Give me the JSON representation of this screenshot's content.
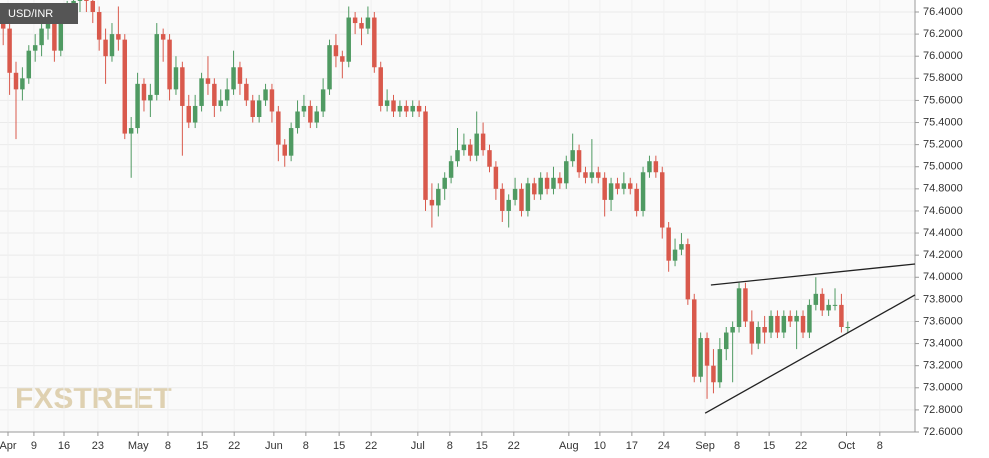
{
  "chart_data": {
    "type": "candlestick",
    "title": "USD/INR",
    "watermark": "FXSTREET",
    "up_color": "#4f9a62",
    "down_color": "#d9594c",
    "grid": true,
    "xlim": [
      -0.5,
      142.5
    ],
    "xticks": [
      {
        "value": 0.75,
        "label": "Apr"
      },
      {
        "value": 4.8,
        "label": "9"
      },
      {
        "value": 9.5,
        "label": "16"
      },
      {
        "value": 14.8,
        "label": "23"
      },
      {
        "value": 21.1,
        "label": "May"
      },
      {
        "value": 25.75,
        "label": "8"
      },
      {
        "value": 31.1,
        "label": "15"
      },
      {
        "value": 36.1,
        "label": "22"
      },
      {
        "value": 42.3,
        "label": "Jun"
      },
      {
        "value": 47.3,
        "label": "8"
      },
      {
        "value": 52.5,
        "label": "15"
      },
      {
        "value": 57.5,
        "label": "22"
      },
      {
        "value": 64.8,
        "label": "Jul"
      },
      {
        "value": 69.8,
        "label": "8"
      },
      {
        "value": 74.8,
        "label": "15"
      },
      {
        "value": 79.8,
        "label": "22"
      },
      {
        "value": 88.4,
        "label": "Aug"
      },
      {
        "value": 93.25,
        "label": "10"
      },
      {
        "value": 98.25,
        "label": "17"
      },
      {
        "value": 103.25,
        "label": "24"
      },
      {
        "value": 109.7,
        "label": "Sep"
      },
      {
        "value": 114.7,
        "label": "8"
      },
      {
        "value": 119.7,
        "label": "15"
      },
      {
        "value": 124.7,
        "label": "22"
      },
      {
        "value": 131.8,
        "label": "Oct"
      },
      {
        "value": 137,
        "label": "8"
      }
    ],
    "ylim": [
      72.6,
      76.4
    ],
    "yticks": [
      {
        "value": 72.6,
        "label": "72.6000"
      },
      {
        "value": 72.8,
        "label": "72.8000"
      },
      {
        "value": 73.0,
        "label": "73.0000"
      },
      {
        "value": 73.2,
        "label": "73.2000"
      },
      {
        "value": 73.4,
        "label": "73.4000"
      },
      {
        "value": 73.6,
        "label": "73.6000"
      },
      {
        "value": 73.8,
        "label": "73.8000"
      },
      {
        "value": 74.0,
        "label": "74.0000"
      },
      {
        "value": 74.2,
        "label": "74.2000"
      },
      {
        "value": 74.4,
        "label": "74.4000"
      },
      {
        "value": 74.6,
        "label": "74.6000"
      },
      {
        "value": 74.8,
        "label": "74.8000"
      },
      {
        "value": 75.0,
        "label": "75.0000"
      },
      {
        "value": 75.2,
        "label": "75.2000"
      },
      {
        "value": 75.4,
        "label": "75.4000"
      },
      {
        "value": 75.6,
        "label": "75.6000"
      },
      {
        "value": 75.8,
        "label": "75.8000"
      },
      {
        "value": 76.0,
        "label": "76.0000"
      },
      {
        "value": 76.2,
        "label": "76.2000"
      },
      {
        "value": 76.4,
        "label": "76.4000"
      }
    ],
    "x": [
      0,
      1,
      2,
      3,
      4,
      5,
      6,
      7,
      8,
      9,
      10,
      11,
      12,
      13,
      14,
      15,
      16,
      17,
      18,
      19,
      20,
      21,
      22,
      23,
      24,
      25,
      26,
      27,
      28,
      29,
      30,
      31,
      32,
      33,
      34,
      35,
      36,
      37,
      38,
      39,
      40,
      41,
      42,
      43,
      44,
      45,
      46,
      47,
      48,
      49,
      50,
      51,
      52,
      53,
      54,
      55,
      56,
      57,
      58,
      59,
      60,
      61,
      62,
      63,
      64,
      65,
      66,
      67,
      68,
      69,
      70,
      71,
      72,
      73,
      74,
      75,
      76,
      77,
      78,
      79,
      80,
      81,
      82,
      83,
      84,
      85,
      86,
      87,
      88,
      89,
      90,
      91,
      92,
      93,
      94,
      95,
      96,
      97,
      98,
      99,
      100,
      101,
      102,
      103,
      104,
      105,
      106,
      107,
      108,
      109,
      110,
      111,
      112,
      113,
      114,
      115,
      116,
      117,
      118,
      119,
      120,
      121,
      122,
      123,
      124,
      125,
      126,
      127,
      128,
      129,
      130,
      131,
      132
    ],
    "ohlc": [
      [
        76.35,
        76.4,
        76.1,
        76.25
      ],
      [
        76.25,
        76.3,
        75.65,
        75.85
      ],
      [
        75.85,
        75.95,
        75.25,
        75.7
      ],
      [
        75.7,
        75.9,
        75.6,
        75.8
      ],
      [
        75.8,
        76.1,
        75.75,
        76.05
      ],
      [
        76.05,
        76.2,
        75.95,
        76.1
      ],
      [
        76.1,
        76.3,
        76.0,
        76.25
      ],
      [
        76.25,
        76.4,
        76.15,
        76.3
      ],
      [
        76.3,
        76.35,
        75.95,
        76.05
      ],
      [
        76.05,
        76.4,
        76.0,
        76.35
      ],
      [
        76.35,
        76.5,
        76.3,
        76.45
      ],
      [
        76.45,
        76.55,
        76.35,
        76.5
      ],
      [
        76.5,
        76.6,
        76.4,
        76.55
      ],
      [
        76.55,
        76.6,
        76.4,
        76.5
      ],
      [
        76.5,
        76.55,
        76.3,
        76.4
      ],
      [
        76.4,
        76.45,
        76.05,
        76.15
      ],
      [
        76.15,
        76.25,
        75.75,
        76.0
      ],
      [
        76.0,
        76.3,
        75.95,
        76.2
      ],
      [
        76.2,
        76.45,
        76.05,
        76.15
      ],
      [
        76.15,
        76.2,
        75.25,
        75.3
      ],
      [
        75.3,
        75.45,
        74.9,
        75.35
      ],
      [
        75.35,
        75.85,
        75.3,
        75.75
      ],
      [
        75.75,
        75.8,
        75.5,
        75.6
      ],
      [
        75.6,
        75.75,
        75.45,
        75.65
      ],
      [
        75.65,
        76.3,
        75.6,
        76.2
      ],
      [
        76.2,
        76.25,
        75.95,
        76.15
      ],
      [
        76.15,
        76.2,
        75.6,
        75.7
      ],
      [
        75.7,
        76.0,
        75.65,
        75.9
      ],
      [
        75.9,
        75.95,
        75.1,
        75.55
      ],
      [
        75.55,
        75.65,
        75.35,
        75.4
      ],
      [
        75.4,
        75.65,
        75.35,
        75.55
      ],
      [
        75.55,
        75.85,
        75.5,
        75.8
      ],
      [
        75.8,
        76.0,
        75.65,
        75.75
      ],
      [
        75.75,
        75.8,
        75.45,
        75.55
      ],
      [
        75.55,
        75.7,
        75.5,
        75.6
      ],
      [
        75.6,
        75.8,
        75.55,
        75.7
      ],
      [
        75.7,
        76.05,
        75.65,
        75.9
      ],
      [
        75.9,
        75.95,
        75.65,
        75.75
      ],
      [
        75.75,
        75.8,
        75.55,
        75.6
      ],
      [
        75.6,
        75.65,
        75.4,
        75.45
      ],
      [
        75.45,
        75.65,
        75.4,
        75.6
      ],
      [
        75.6,
        75.75,
        75.55,
        75.7
      ],
      [
        75.7,
        75.75,
        75.4,
        75.5
      ],
      [
        75.5,
        75.55,
        75.05,
        75.2
      ],
      [
        75.2,
        75.25,
        75.0,
        75.1
      ],
      [
        75.1,
        75.4,
        75.05,
        75.35
      ],
      [
        75.35,
        75.6,
        75.3,
        75.5
      ],
      [
        75.5,
        75.65,
        75.45,
        75.55
      ],
      [
        75.55,
        75.6,
        75.35,
        75.4
      ],
      [
        75.4,
        75.55,
        75.35,
        75.5
      ],
      [
        75.5,
        75.8,
        75.45,
        75.7
      ],
      [
        75.7,
        76.15,
        75.65,
        76.1
      ],
      [
        76.1,
        76.2,
        75.9,
        76.0
      ],
      [
        76.0,
        76.05,
        75.8,
        75.95
      ],
      [
        75.95,
        76.45,
        75.9,
        76.35
      ],
      [
        76.35,
        76.4,
        76.2,
        76.3
      ],
      [
        76.3,
        76.35,
        76.1,
        76.25
      ],
      [
        76.25,
        76.45,
        76.2,
        76.35
      ],
      [
        76.35,
        76.4,
        75.85,
        75.9
      ],
      [
        75.9,
        75.95,
        75.5,
        75.55
      ],
      [
        75.55,
        75.7,
        75.5,
        75.6
      ],
      [
        75.6,
        75.65,
        75.45,
        75.5
      ],
      [
        75.5,
        75.6,
        75.45,
        75.55
      ],
      [
        75.55,
        75.6,
        75.45,
        75.5
      ],
      [
        75.5,
        75.6,
        75.45,
        75.55
      ],
      [
        75.55,
        75.6,
        75.45,
        75.5
      ],
      [
        75.5,
        75.55,
        74.6,
        74.7
      ],
      [
        74.7,
        74.85,
        74.45,
        74.65
      ],
      [
        74.65,
        74.85,
        74.55,
        74.8
      ],
      [
        74.8,
        74.95,
        74.7,
        74.9
      ],
      [
        74.9,
        75.1,
        74.85,
        75.05
      ],
      [
        75.05,
        75.35,
        75.0,
        75.15
      ],
      [
        75.15,
        75.3,
        75.1,
        75.2
      ],
      [
        75.2,
        75.25,
        75.05,
        75.1
      ],
      [
        75.1,
        75.5,
        75.05,
        75.3
      ],
      [
        75.3,
        75.4,
        75.1,
        75.15
      ],
      [
        75.15,
        75.2,
        74.95,
        75.0
      ],
      [
        75.0,
        75.05,
        74.7,
        74.8
      ],
      [
        74.8,
        74.85,
        74.5,
        74.6
      ],
      [
        74.6,
        74.75,
        74.45,
        74.7
      ],
      [
        74.7,
        74.9,
        74.65,
        74.8
      ],
      [
        74.8,
        74.85,
        74.55,
        74.6
      ],
      [
        74.6,
        74.9,
        74.55,
        74.85
      ],
      [
        74.85,
        74.9,
        74.7,
        74.75
      ],
      [
        74.75,
        74.95,
        74.7,
        74.9
      ],
      [
        74.9,
        74.95,
        74.75,
        74.8
      ],
      [
        74.8,
        75.0,
        74.75,
        74.9
      ],
      [
        74.9,
        74.95,
        74.8,
        74.85
      ],
      [
        74.85,
        75.1,
        74.8,
        75.05
      ],
      [
        75.05,
        75.3,
        75.0,
        75.15
      ],
      [
        75.15,
        75.2,
        74.9,
        74.95
      ],
      [
        74.95,
        75.0,
        74.85,
        74.9
      ],
      [
        74.9,
        75.25,
        74.85,
        74.95
      ],
      [
        74.95,
        75.0,
        74.85,
        74.9
      ],
      [
        74.9,
        74.95,
        74.55,
        74.7
      ],
      [
        74.7,
        74.9,
        74.6,
        74.85
      ],
      [
        74.85,
        74.9,
        74.75,
        74.8
      ],
      [
        74.8,
        74.95,
        74.75,
        74.85
      ],
      [
        74.85,
        74.9,
        74.75,
        74.8
      ],
      [
        74.8,
        74.85,
        74.55,
        74.6
      ],
      [
        74.6,
        75.0,
        74.55,
        74.95
      ],
      [
        74.95,
        75.1,
        74.9,
        75.05
      ],
      [
        75.05,
        75.1,
        74.9,
        74.95
      ],
      [
        74.95,
        75.0,
        74.35,
        74.45
      ],
      [
        74.45,
        74.5,
        74.05,
        74.15
      ],
      [
        74.15,
        74.35,
        74.1,
        74.25
      ],
      [
        74.25,
        74.4,
        74.2,
        74.3
      ],
      [
        74.3,
        74.35,
        73.75,
        73.8
      ],
      [
        73.8,
        73.85,
        73.05,
        73.1
      ],
      [
        73.1,
        73.5,
        73.05,
        73.45
      ],
      [
        73.45,
        73.5,
        72.9,
        73.2
      ],
      [
        73.2,
        73.35,
        72.95,
        73.05
      ],
      [
        73.05,
        73.45,
        73.0,
        73.35
      ],
      [
        73.35,
        73.55,
        73.25,
        73.5
      ],
      [
        73.5,
        73.6,
        73.05,
        73.55
      ],
      [
        73.55,
        73.95,
        73.5,
        73.9
      ],
      [
        73.9,
        73.95,
        73.55,
        73.6
      ],
      [
        73.6,
        73.7,
        73.3,
        73.4
      ],
      [
        73.4,
        73.6,
        73.35,
        73.55
      ],
      [
        73.55,
        73.65,
        73.4,
        73.5
      ],
      [
        73.5,
        73.7,
        73.45,
        73.65
      ],
      [
        73.65,
        73.7,
        73.45,
        73.5
      ],
      [
        73.5,
        73.7,
        73.45,
        73.65
      ],
      [
        73.65,
        73.7,
        73.55,
        73.6
      ],
      [
        73.6,
        73.7,
        73.35,
        73.65
      ],
      [
        73.65,
        73.7,
        73.45,
        73.5
      ],
      [
        73.5,
        73.8,
        73.45,
        73.75
      ],
      [
        73.75,
        74.0,
        73.7,
        73.85
      ],
      [
        73.85,
        73.9,
        73.65,
        73.7
      ],
      [
        73.7,
        73.8,
        73.65,
        73.75
      ],
      [
        73.75,
        73.9,
        73.7,
        73.75
      ],
      [
        73.75,
        73.85,
        73.5,
        73.55
      ],
      [
        73.55,
        73.6,
        73.5,
        73.55
      ]
    ],
    "trend_lines": [
      {
        "x": [
          110.6,
          142.5
        ],
        "y": [
          73.93,
          74.12
        ]
      },
      {
        "x": [
          109.7,
          142.5
        ],
        "y": [
          72.77,
          73.84
        ]
      }
    ]
  }
}
